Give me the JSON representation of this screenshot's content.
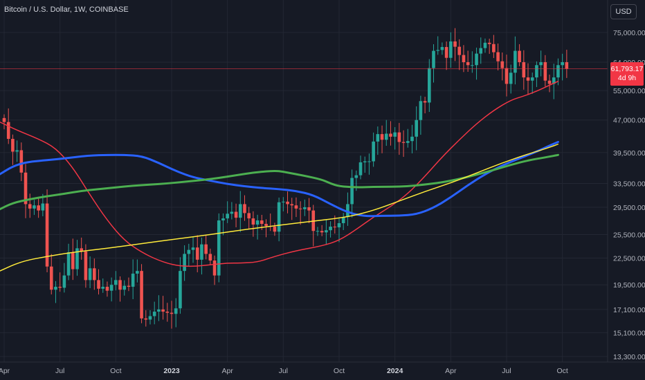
{
  "header": {
    "title": "Bitcoin / U.S. Dollar, 1W, COINBASE",
    "currency_button": "USD"
  },
  "last_price": {
    "value": "61,793.17",
    "countdown": "4d 9h",
    "price": 61793.17
  },
  "colors": {
    "background": "#161a25",
    "up": "#26a69a",
    "down": "#ef5350",
    "ma_red": "#f23645",
    "ma_blue": "#2962ff",
    "ma_green": "#4caf50",
    "ma_yellow": "#ffeb3b"
  },
  "chart_data": {
    "type": "candlestick",
    "title": "Bitcoin / U.S. Dollar, 1W, COINBASE",
    "y_scale": "log",
    "ylim": [
      13000,
      79000
    ],
    "y_ticks": [
      {
        "v": 75000,
        "label": "75,000.00"
      },
      {
        "v": 64000,
        "label": "64,000.00"
      },
      {
        "v": 55000,
        "label": "55,000.00"
      },
      {
        "v": 47000,
        "label": "47,000.00"
      },
      {
        "v": 39500,
        "label": "39,500.00"
      },
      {
        "v": 33500,
        "label": "33,500.00"
      },
      {
        "v": 29500,
        "label": "29,500.00"
      },
      {
        "v": 25500,
        "label": "25,500.00"
      },
      {
        "v": 22500,
        "label": "22,500.00"
      },
      {
        "v": 19500,
        "label": "19,500.00"
      },
      {
        "v": 17100,
        "label": "17,100.00"
      },
      {
        "v": 15100,
        "label": "15,100.00"
      },
      {
        "v": 13300,
        "label": "13,300.00"
      }
    ],
    "x_ticks": [
      {
        "i": 0,
        "label": "Apr",
        "bold": false
      },
      {
        "i": 13,
        "label": "Jul",
        "bold": false
      },
      {
        "i": 26,
        "label": "Oct",
        "bold": false
      },
      {
        "i": 39,
        "label": "2023",
        "bold": true
      },
      {
        "i": 52,
        "label": "Apr",
        "bold": false
      },
      {
        "i": 65,
        "label": "Jul",
        "bold": false
      },
      {
        "i": 78,
        "label": "Oct",
        "bold": false
      },
      {
        "i": 91,
        "label": "2024",
        "bold": true
      },
      {
        "i": 104,
        "label": "Apr",
        "bold": false
      },
      {
        "i": 117,
        "label": "Jul",
        "bold": false
      },
      {
        "i": 130,
        "label": "Oct",
        "bold": false
      }
    ],
    "x_range": [
      -1.5,
      133.5
    ],
    "closes": [
      46500,
      42500,
      39700,
      40000,
      35500,
      30000,
      29300,
      29800,
      29000,
      30100,
      21500,
      19000,
      19300,
      19200,
      20500,
      23200,
      21200,
      23700,
      23300,
      20000,
      21300,
      20000,
      19100,
      19300,
      18900,
      19500,
      20000,
      19000,
      19400,
      19300,
      20700,
      21000,
      16300,
      16200,
      16500,
      16900,
      17100,
      16900,
      16800,
      16700,
      17200,
      21000,
      23000,
      23500,
      23800,
      22300,
      24200,
      23000,
      22200,
      20500,
      27500,
      27800,
      28500,
      28800,
      27900,
      30000,
      28600,
      27800,
      26900,
      27500,
      27000,
      26700,
      26600,
      25900,
      30300,
      30400,
      30000,
      29800,
      29300,
      29200,
      29500,
      29000,
      26000,
      26000,
      25800,
      26100,
      26600,
      26500,
      27100,
      28000,
      30000,
      34500,
      35000,
      37500,
      37700,
      37700,
      41900,
      43600,
      42300,
      43700,
      43000,
      44000,
      41800,
      41600,
      42000,
      43000,
      47000,
      52000,
      51600,
      62000,
      68000,
      68300,
      69400,
      65500,
      71500,
      69500,
      66500,
      64000,
      63000,
      63000,
      67000,
      69000,
      71000,
      70500,
      67500,
      64300,
      62000,
      57000,
      60500,
      68000,
      64000,
      59000,
      58000,
      59000,
      63000,
      64000,
      58000,
      57000,
      59000,
      63000,
      64000,
      61793
    ]
  },
  "moving_averages": [
    {
      "color": "#f23645",
      "width": 1.5,
      "points": [
        [
          -1,
          46500
        ],
        [
          3,
          44500
        ],
        [
          8,
          42500
        ],
        [
          12,
          40500
        ],
        [
          16,
          36500
        ],
        [
          20,
          31500
        ],
        [
          24,
          27500
        ],
        [
          28,
          24700
        ],
        [
          32,
          23200
        ],
        [
          36,
          22200
        ],
        [
          40,
          21600
        ],
        [
          44,
          21500
        ],
        [
          48,
          21700
        ],
        [
          52,
          21900
        ],
        [
          55,
          21900
        ],
        [
          59,
          22000
        ],
        [
          63,
          22700
        ],
        [
          68,
          23400
        ],
        [
          74,
          24000
        ],
        [
          78,
          24700
        ],
        [
          82,
          26200
        ],
        [
          86,
          28000
        ],
        [
          90,
          29600
        ],
        [
          94,
          31700
        ],
        [
          98,
          34800
        ],
        [
          102,
          38600
        ],
        [
          106,
          42300
        ],
        [
          110,
          46100
        ],
        [
          114,
          49500
        ],
        [
          118,
          52300
        ],
        [
          121,
          53400
        ],
        [
          124,
          54800
        ],
        [
          127,
          56600
        ],
        [
          129,
          57800
        ]
      ]
    },
    {
      "color": "#2962ff",
      "width": 3,
      "points": [
        [
          -1,
          35200
        ],
        [
          2,
          36700
        ],
        [
          5,
          37500
        ],
        [
          8,
          37800
        ],
        [
          12,
          38100
        ],
        [
          16,
          38500
        ],
        [
          20,
          38900
        ],
        [
          24,
          39000
        ],
        [
          28,
          39000
        ],
        [
          32,
          38800
        ],
        [
          36,
          37400
        ],
        [
          40,
          35800
        ],
        [
          44,
          34600
        ],
        [
          48,
          34000
        ],
        [
          52,
          33400
        ],
        [
          56,
          33000
        ],
        [
          60,
          32700
        ],
        [
          64,
          32500
        ],
        [
          68,
          32200
        ],
        [
          72,
          31500
        ],
        [
          76,
          30000
        ],
        [
          80,
          28700
        ],
        [
          84,
          28100
        ],
        [
          88,
          28200
        ],
        [
          92,
          28200
        ],
        [
          96,
          28400
        ],
        [
          100,
          29400
        ],
        [
          104,
          31100
        ],
        [
          108,
          33200
        ],
        [
          112,
          35200
        ],
        [
          116,
          36900
        ],
        [
          120,
          38300
        ],
        [
          124,
          39700
        ],
        [
          127,
          41000
        ],
        [
          129,
          41800
        ]
      ]
    },
    {
      "color": "#4caf50",
      "width": 3,
      "points": [
        [
          -1,
          29200
        ],
        [
          2,
          30200
        ],
        [
          6,
          30800
        ],
        [
          10,
          31300
        ],
        [
          14,
          31700
        ],
        [
          18,
          32200
        ],
        [
          22,
          32500
        ],
        [
          26,
          32800
        ],
        [
          30,
          33100
        ],
        [
          34,
          33300
        ],
        [
          38,
          33500
        ],
        [
          42,
          33800
        ],
        [
          46,
          34100
        ],
        [
          50,
          34500
        ],
        [
          54,
          35000
        ],
        [
          58,
          35500
        ],
        [
          62,
          35800
        ],
        [
          64,
          35800
        ],
        [
          66,
          35500
        ],
        [
          70,
          34900
        ],
        [
          74,
          34200
        ],
        [
          76,
          33500
        ],
        [
          78,
          33000
        ],
        [
          82,
          32800
        ],
        [
          86,
          32900
        ],
        [
          90,
          32900
        ],
        [
          94,
          33000
        ],
        [
          98,
          33300
        ],
        [
          102,
          33700
        ],
        [
          106,
          34300
        ],
        [
          110,
          35100
        ],
        [
          114,
          36000
        ],
        [
          118,
          37000
        ],
        [
          122,
          37900
        ],
        [
          126,
          38500
        ],
        [
          129,
          39000
        ]
      ]
    },
    {
      "color": "#ffeb3b",
      "width": 1.5,
      "points": [
        [
          -1,
          21000
        ],
        [
          4,
          22100
        ],
        [
          10,
          22700
        ],
        [
          16,
          23200
        ],
        [
          24,
          23700
        ],
        [
          32,
          24300
        ],
        [
          40,
          24900
        ],
        [
          48,
          25500
        ],
        [
          56,
          26200
        ],
        [
          64,
          26800
        ],
        [
          72,
          27400
        ],
        [
          80,
          28000
        ],
        [
          86,
          29000
        ],
        [
          92,
          30500
        ],
        [
          98,
          32100
        ],
        [
          104,
          33600
        ],
        [
          110,
          35400
        ],
        [
          116,
          37400
        ],
        [
          122,
          39200
        ],
        [
          126,
          40300
        ],
        [
          129,
          41300
        ]
      ]
    }
  ]
}
